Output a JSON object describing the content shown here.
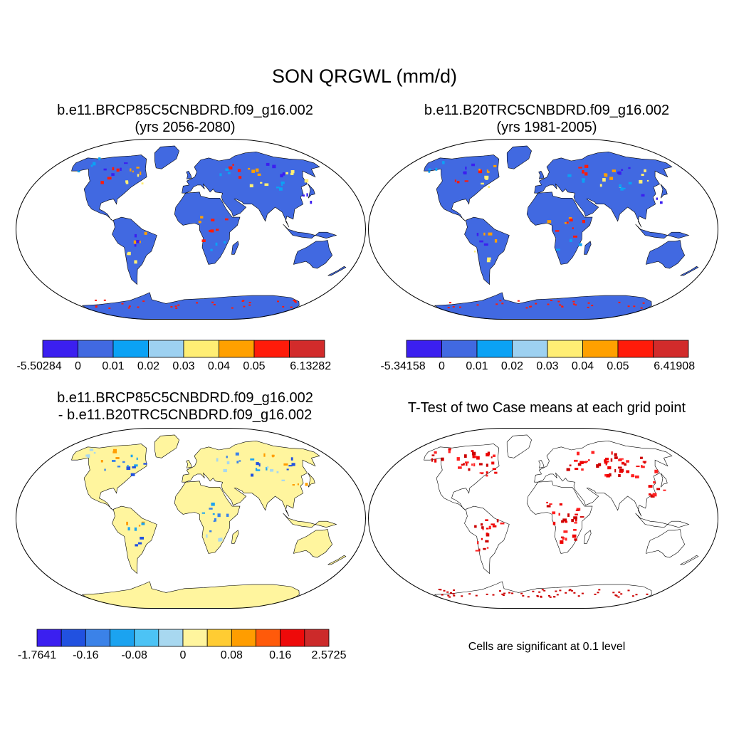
{
  "figure": {
    "title": "SON QRGWL (mm/d)"
  },
  "panels": [
    {
      "id": "case",
      "title_lines": [
        "b.e11.BRCP85C5CNBDRD.f09_g16.002",
        "(yrs 2056-2080)"
      ],
      "land_color": "#4169e1",
      "colorbar": {
        "colors": [
          "#3b1ff0",
          "#4169e1",
          "#0ba2f5",
          "#9dd1f1",
          "#ffee74",
          "#ffa000",
          "#ff1b0a",
          "#d22b2b"
        ],
        "labels": [
          "-5.50284",
          "0",
          "0.01",
          "0.02",
          "0.03",
          "0.04",
          "0.05",
          "6.13282"
        ]
      }
    },
    {
      "id": "control",
      "title_lines": [
        "b.e11.B20TRC5CNBDRD.f09_g16.002",
        "(yrs 1981-2005)"
      ],
      "land_color": "#4169e1",
      "colorbar": {
        "colors": [
          "#3b1ff0",
          "#4169e1",
          "#0ba2f5",
          "#9dd1f1",
          "#ffee74",
          "#ffa000",
          "#ff1b0a",
          "#d22b2b"
        ],
        "labels": [
          "-5.34158",
          "0",
          "0.01",
          "0.02",
          "0.03",
          "0.04",
          "0.05",
          "6.41908"
        ]
      }
    },
    {
      "id": "difference",
      "title_lines": [
        "b.e11.BRCP85C5CNBDRD.f09_g16.002",
        "- b.e11.B20TRC5CNBDRD.f09_g16.002"
      ],
      "land_color": "#fff59e",
      "colorbar": {
        "colors": [
          "#3b1ff0",
          "#2151e0",
          "#3b82e8",
          "#1ba3f0",
          "#4cc3f5",
          "#a8d8f0",
          "#fff59e",
          "#ffcc33",
          "#ff9d00",
          "#ff5a0a",
          "#ee0a0a",
          "#cc2a2a"
        ],
        "labels": [
          "-1.7641",
          "-0.16",
          "-0.08",
          "0",
          "0.08",
          "0.16",
          "2.5725"
        ]
      }
    },
    {
      "id": "ttest",
      "title_lines": [
        "T-Test of two Case means at each grid point"
      ],
      "land_color": "#ffffff",
      "note": "Cells are significant at 0.1 level"
    }
  ]
}
